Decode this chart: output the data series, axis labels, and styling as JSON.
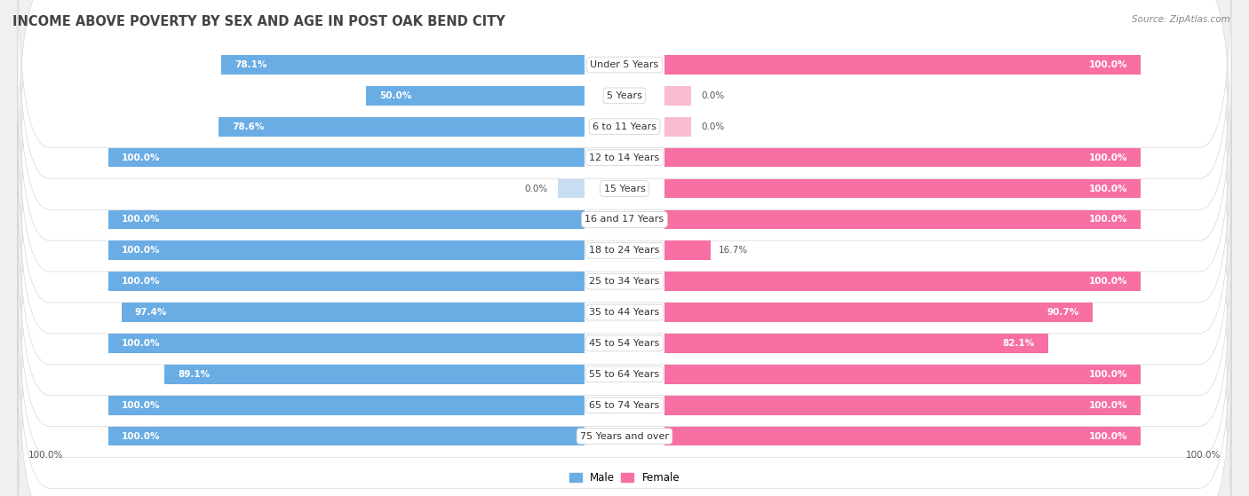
{
  "title": "INCOME ABOVE POVERTY BY SEX AND AGE IN POST OAK BEND CITY",
  "source": "Source: ZipAtlas.com",
  "categories": [
    "Under 5 Years",
    "5 Years",
    "6 to 11 Years",
    "12 to 14 Years",
    "15 Years",
    "16 and 17 Years",
    "18 to 24 Years",
    "25 to 34 Years",
    "35 to 44 Years",
    "45 to 54 Years",
    "55 to 64 Years",
    "65 to 74 Years",
    "75 Years and over"
  ],
  "male": [
    78.1,
    50.0,
    78.6,
    100.0,
    0.0,
    100.0,
    100.0,
    100.0,
    97.4,
    100.0,
    89.1,
    100.0,
    100.0
  ],
  "female": [
    100.0,
    0.0,
    0.0,
    100.0,
    100.0,
    100.0,
    16.7,
    100.0,
    90.7,
    82.1,
    100.0,
    100.0,
    100.0
  ],
  "male_color": "#6aade4",
  "female_color": "#f76fa3",
  "male_light_color": "#c8ddf2",
  "female_light_color": "#f9bcd1",
  "background_color": "#f0f0f0",
  "bar_background": "#ffffff",
  "row_gap_color": "#dde3ea",
  "title_fontsize": 10.5,
  "label_fontsize": 8.0,
  "value_fontsize": 7.5,
  "legend_fontsize": 8.5,
  "axis_label_fontsize": 7.5
}
